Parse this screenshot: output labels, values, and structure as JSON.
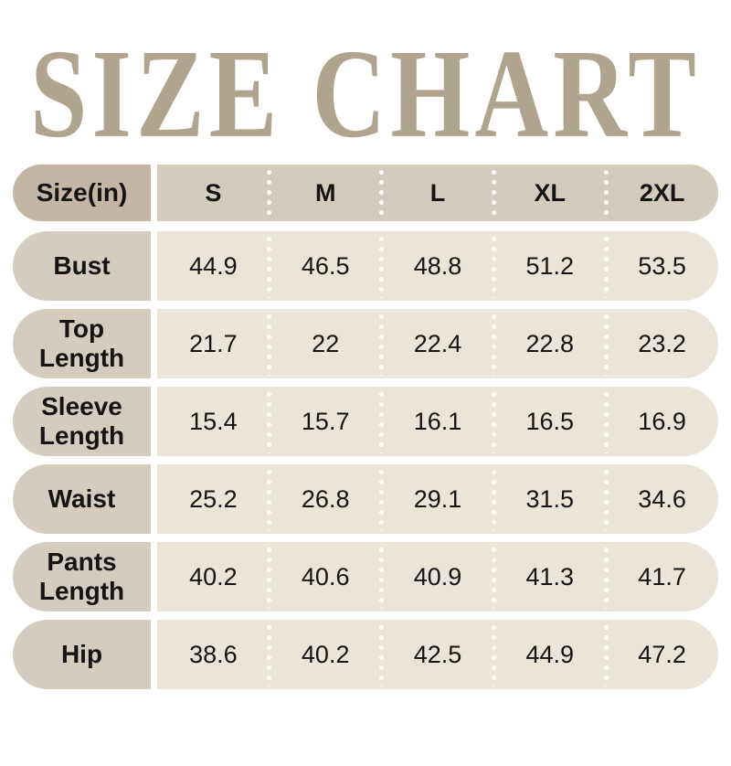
{
  "chart_data": {
    "type": "table",
    "title": "SIZE CHART",
    "unit_label": "Size(in)",
    "columns": [
      "S",
      "M",
      "L",
      "XL",
      "2XL"
    ],
    "rows": [
      {
        "label": "Bust",
        "values": [
          "44.9",
          "46.5",
          "48.8",
          "51.2",
          "53.5"
        ]
      },
      {
        "label": "Top Length",
        "values": [
          "21.7",
          "22",
          "22.4",
          "22.8",
          "23.2"
        ]
      },
      {
        "label": "Sleeve Length",
        "values": [
          "15.4",
          "15.7",
          "16.1",
          "16.5",
          "16.9"
        ]
      },
      {
        "label": "Waist",
        "values": [
          "25.2",
          "26.8",
          "29.1",
          "31.5",
          "34.6"
        ]
      },
      {
        "label": "Pants Length",
        "values": [
          "40.2",
          "40.6",
          "40.9",
          "41.3",
          "41.7"
        ]
      },
      {
        "label": "Hip",
        "values": [
          "38.6",
          "40.2",
          "42.5",
          "44.9",
          "47.2"
        ]
      }
    ]
  },
  "colors": {
    "title_color": "#b1a48f",
    "header_label_bg": "#c3b7a4",
    "header_data_bg": "#d3cbbc",
    "row_label_bg": "#d4ccbe",
    "row_data_bg": "#eae4d9",
    "text_color": "#141414",
    "page_bg": "#ffffff"
  }
}
